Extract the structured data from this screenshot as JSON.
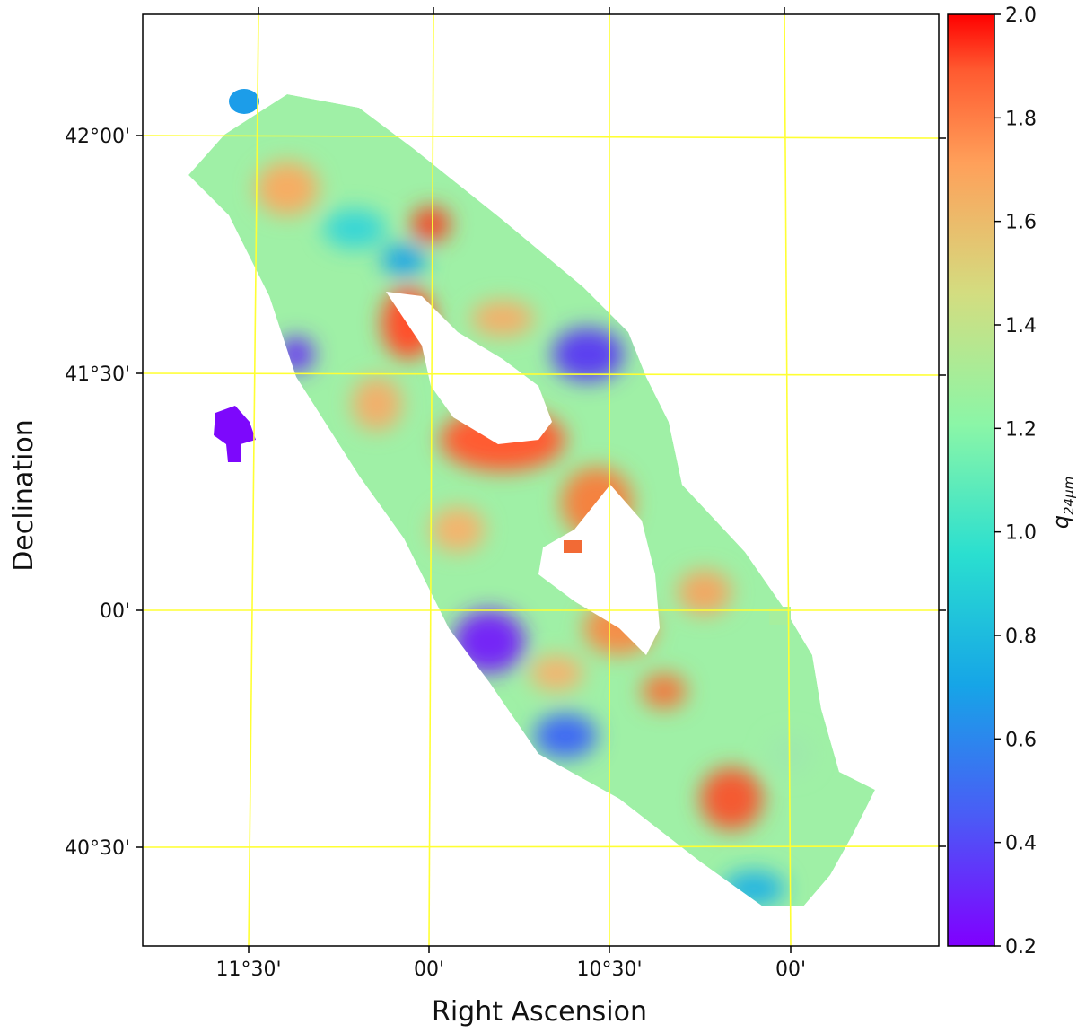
{
  "chart_data": {
    "type": "heatmap",
    "title": "",
    "xlabel": "Right Ascension",
    "ylabel": "Declination",
    "x_ticks": [
      "11°30'",
      "00'",
      "10°30'",
      "00'"
    ],
    "y_ticks": [
      "42°00'",
      "41°30'",
      "00'",
      "40°30'"
    ],
    "colorbar": {
      "label": "q",
      "label_subscript": "24μm",
      "range": [
        0.2,
        2.0
      ],
      "ticks": [
        "2.0",
        "1.8",
        "1.6",
        "1.4",
        "1.2",
        "1.0",
        "0.8",
        "0.6",
        "0.4",
        "0.2"
      ],
      "colormap": "rainbow"
    },
    "grid": "on",
    "grid_color": "#ffff33",
    "image_description": "Andromeda-like inclined disk map of q_24um; ring structure peaks near 1.8–2.0 (red), disk mostly ~1.1–1.4, outer edges down to ~0.2–0.6 (blue/purple); white central hole with no data"
  },
  "colors": {
    "grid": "#ffff33",
    "frame": "#000000",
    "background": "#ffffff"
  }
}
